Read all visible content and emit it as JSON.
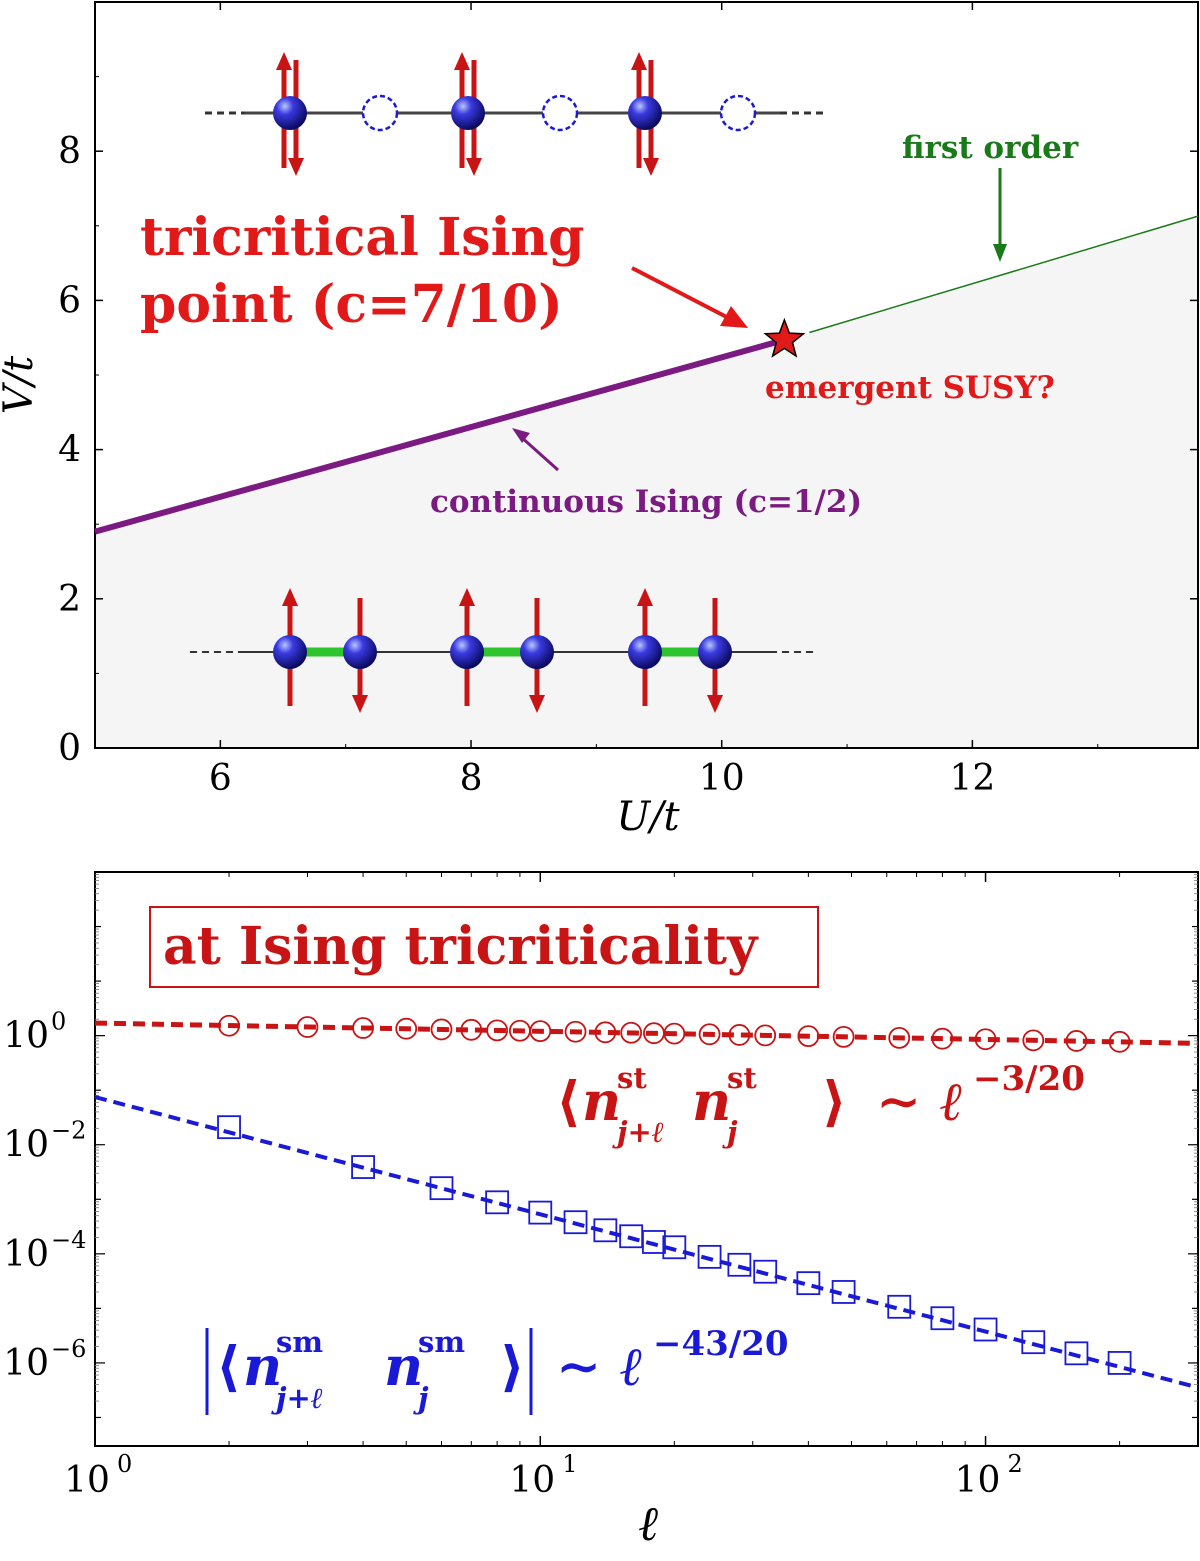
{
  "colors": {
    "purple": "#7b1a80",
    "green": "#1a7a1a",
    "red": "#e11919",
    "darkred": "#c81414",
    "blue": "#1a1ad6",
    "shade": "#f5f5f5",
    "bond": "#2ec42e"
  },
  "chart_data": [
    {
      "type": "line",
      "panel": "phase-diagram",
      "xlabel": "U/t",
      "ylabel": "V/t",
      "xlim": [
        5,
        13.8
      ],
      "ylim": [
        0,
        10
      ],
      "xticks": [
        "6",
        "8",
        "10",
        "12"
      ],
      "yticks": [
        "0",
        "2",
        "4",
        "6",
        "8"
      ],
      "series": [
        {
          "name": "continuous Ising (c=1/2)",
          "x": [
            5,
            10.5
          ],
          "y": [
            2.9,
            5.47
          ]
        },
        {
          "name": "first order",
          "x": [
            10.7,
            13.8
          ],
          "y": [
            5.57,
            7.13
          ]
        }
      ],
      "tricritical_point": {
        "x": 10.5,
        "y": 5.47
      },
      "annotations": {
        "tricritical_line1": "tricritical Ising",
        "tricritical_line2": "point (c=7/10)",
        "susy": "emergent SUSY?",
        "first_order": "first order",
        "continuous": "continuous Ising (c=1/2)"
      }
    },
    {
      "type": "scatter",
      "panel": "correlations",
      "xlabel": "ℓ",
      "xscale": "log",
      "yscale": "log",
      "xlim": [
        1,
        300
      ],
      "ylim": [
        3e-08,
        1000
      ],
      "box_label": "at Ising tricriticality",
      "series": [
        {
          "name": "staggered",
          "marker": "circle",
          "fit_exponent": -0.15,
          "fit_prefactor": 1.7,
          "x": [
            2,
            3,
            4,
            5,
            6,
            7,
            8,
            9,
            10,
            12,
            14,
            16,
            18,
            20,
            24,
            28,
            32,
            40,
            48,
            64,
            80,
            100,
            128,
            160,
            200
          ],
          "y": [
            1.52,
            1.44,
            1.38,
            1.34,
            1.3,
            1.28,
            1.25,
            1.23,
            1.21,
            1.18,
            1.15,
            1.13,
            1.11,
            1.09,
            1.06,
            1.03,
            1.01,
            0.98,
            0.95,
            0.91,
            0.88,
            0.86,
            0.82,
            0.8,
            0.77
          ]
        },
        {
          "name": "smooth",
          "marker": "square",
          "fit_exponent": -2.15,
          "fit_prefactor": 0.075,
          "x": [
            2,
            4,
            6,
            8,
            10,
            12,
            14,
            16,
            18,
            20,
            24,
            28,
            32,
            40,
            48,
            64,
            80,
            100,
            128,
            160,
            200
          ],
          "y": [
            0.021,
            0.0039,
            0.0016,
            0.00088,
            0.00057,
            0.00038,
            0.00027,
            0.00021,
            0.000165,
            0.000132,
            8.8e-05,
            6.3e-05,
            4.7e-05,
            2.9e-05,
            2e-05,
            1.07e-05,
            6.6e-06,
            4.1e-06,
            2.4e-06,
            1.5e-06,
            1e-06
          ]
        }
      ],
      "formula_st": {
        "exp": "−3/20",
        "sup": "st",
        "sub": "j+ℓ",
        "sub2": "j"
      },
      "formula_sm": {
        "exp": "−43/20",
        "sup": "sm",
        "sub": "j+ℓ",
        "sub2": "j"
      }
    }
  ]
}
